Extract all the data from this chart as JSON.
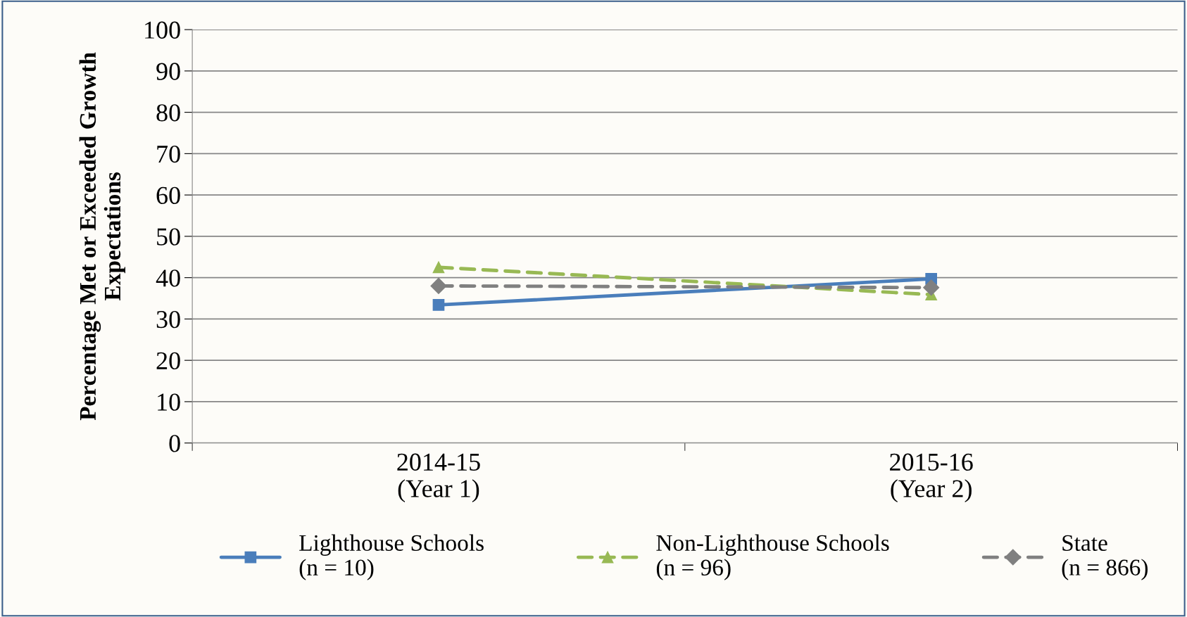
{
  "chart_data": {
    "type": "line",
    "ylabel": "Percentage Met or Exceeded Growth Expectations",
    "categories": [
      "2014-15\n(Year 1)",
      "2015-16\n(Year 2)"
    ],
    "series": [
      {
        "name": "Lighthouse Schools\n(n = 10)",
        "color": "#4a7ebb",
        "values": [
          33.4,
          39.7
        ],
        "marker": "square",
        "line_style": "solid"
      },
      {
        "name": "Non-Lighthouse Schools\n(n = 96)",
        "color": "#98b954",
        "values": [
          42.5,
          35.9
        ],
        "marker": "triangle",
        "line_style": "dashed"
      },
      {
        "name": "State\n(n = 866)",
        "color": "#808080",
        "values": [
          38.0,
          37.6
        ],
        "marker": "diamond",
        "line_style": "dashed"
      }
    ],
    "ylim": [
      0,
      100
    ],
    "yticks": [
      0,
      10,
      20,
      30,
      40,
      50,
      60,
      70,
      80,
      90,
      100
    ],
    "grid": "y",
    "legend": "bottom"
  }
}
